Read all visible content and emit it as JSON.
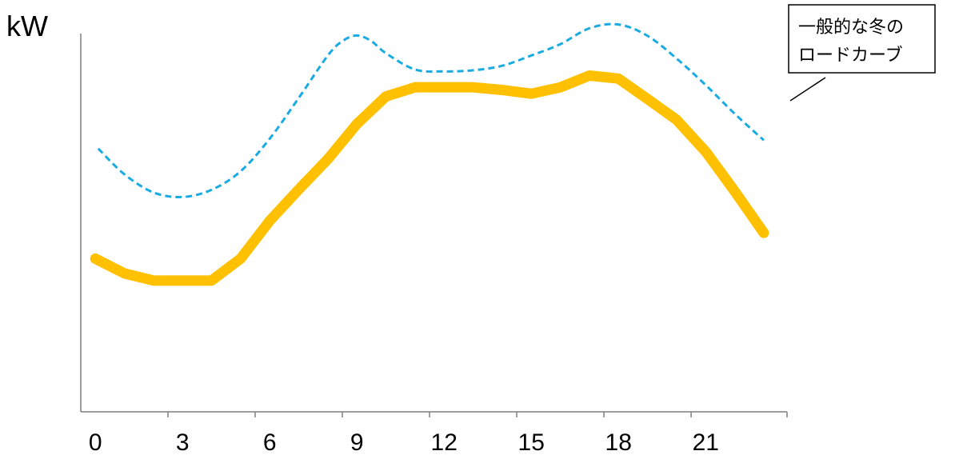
{
  "chart_data": {
    "type": "line",
    "ylabel": "kW",
    "xlabel": "",
    "x_ticks": [
      "0",
      "3",
      "6",
      "9",
      "12",
      "15",
      "18",
      "21"
    ],
    "x_range": [
      -0.5,
      23.8
    ],
    "y_range": [
      0,
      100
    ],
    "grid": false,
    "series": [
      {
        "name": "",
        "style": "solid",
        "color": "#FFC000",
        "x": [
          0,
          1,
          2,
          3,
          4,
          5,
          6,
          7,
          8,
          9,
          10,
          11,
          12,
          13,
          14,
          15,
          16,
          17,
          18,
          19,
          20,
          21,
          22,
          23
        ],
        "values": [
          40.5,
          36.6,
          34.7,
          34.7,
          34.7,
          40.5,
          50.5,
          58.8,
          66.8,
          76.1,
          83.4,
          85.8,
          85.8,
          85.8,
          85.1,
          84.1,
          85.8,
          88.9,
          88.1,
          82.7,
          77.2,
          68.8,
          58.3,
          47.3
        ]
      },
      {
        "name": "一般的な冬のロードカーブ",
        "style": "dashed",
        "color": "#1AABE2",
        "x": [
          0.1,
          1,
          2,
          3,
          4,
          5,
          6,
          7,
          8,
          8.5,
          9,
          9.5,
          10,
          11,
          12,
          13,
          14,
          15,
          16,
          17,
          18,
          19,
          20,
          21,
          22,
          23
        ],
        "values": [
          69.6,
          62.8,
          58.0,
          56.8,
          58.7,
          63.6,
          72.2,
          83.0,
          94.2,
          98.0,
          99.5,
          98.0,
          94.8,
          90.5,
          90.0,
          90.3,
          91.5,
          94.2,
          97.2,
          101.4,
          102.4,
          99.4,
          93.4,
          86.4,
          78.8,
          71.8
        ]
      }
    ],
    "annotations": [
      {
        "lines": [
          "一般的な冬の",
          "ロードカーブ"
        ],
        "points_to": "一般的な冬のロードカーブ"
      }
    ]
  }
}
